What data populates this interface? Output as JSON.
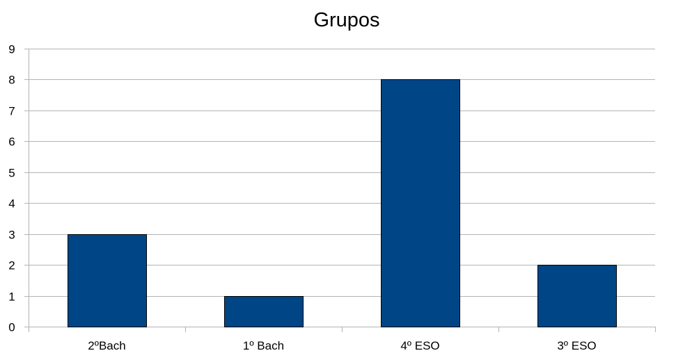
{
  "chart_data": {
    "type": "bar",
    "title": "Grupos",
    "xlabel": "",
    "ylabel": "",
    "categories": [
      "2ºBach",
      "1º Bach",
      "4º ESO",
      "3º ESO"
    ],
    "values": [
      3,
      1,
      8,
      2
    ],
    "ylim": [
      0,
      9
    ],
    "yticks": [
      "0",
      "1",
      "2",
      "3",
      "4",
      "5",
      "6",
      "7",
      "8",
      "9"
    ],
    "grid": true,
    "legend": "none",
    "colors": {
      "bar_fill": "#004586",
      "bar_stroke": "#000000",
      "grid": "#b3b3b3",
      "axis": "#b3b3b3"
    }
  }
}
